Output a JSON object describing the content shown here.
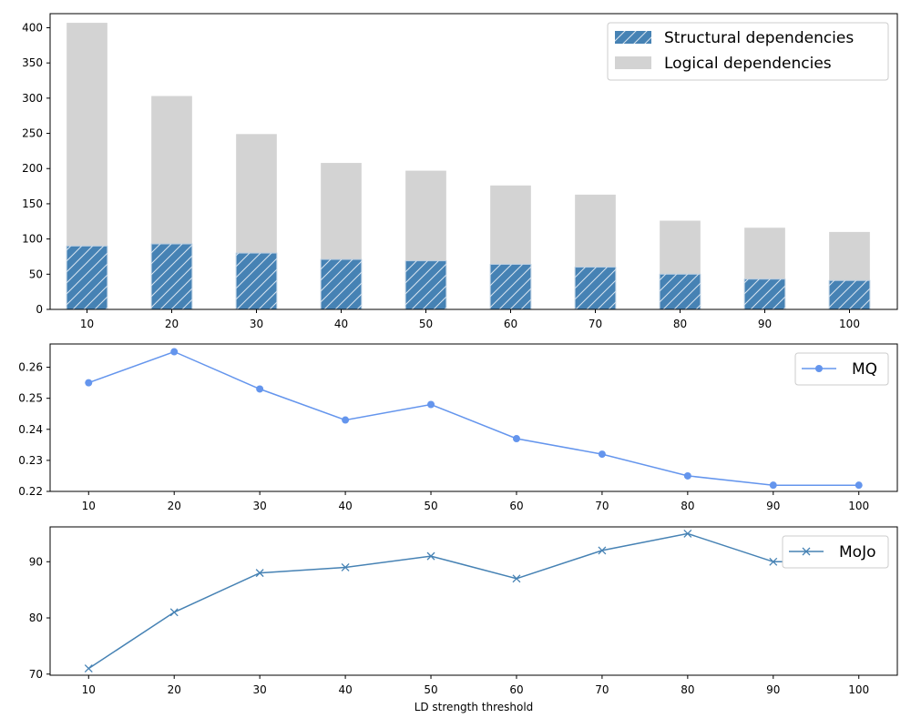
{
  "chart_data": [
    {
      "type": "bar",
      "stacked": false,
      "overlaid": true,
      "categories": [
        "10",
        "20",
        "30",
        "40",
        "50",
        "60",
        "70",
        "80",
        "90",
        "100"
      ],
      "series": [
        {
          "name": "Structural dependencies",
          "values": [
            90,
            93,
            80,
            71,
            69,
            64,
            60,
            50,
            43,
            41
          ],
          "color": "#4682b4",
          "hatch": "diagonal"
        },
        {
          "name": "Logical dependencies",
          "values": [
            407,
            303,
            249,
            208,
            197,
            176,
            163,
            126,
            116,
            110
          ],
          "color": "#d3d3d3"
        }
      ],
      "ylim": [
        0,
        420
      ],
      "yticks": [
        0,
        50,
        100,
        150,
        200,
        250,
        300,
        350,
        400
      ],
      "grid": false,
      "legend_position": "top-right"
    },
    {
      "type": "line",
      "x": [
        10,
        20,
        30,
        40,
        50,
        60,
        70,
        80,
        90,
        100
      ],
      "series": [
        {
          "name": "MQ",
          "values": [
            0.255,
            0.265,
            0.253,
            0.243,
            0.248,
            0.237,
            0.232,
            0.225,
            0.222,
            0.222
          ],
          "color": "#6495ed",
          "marker": "circle"
        }
      ],
      "xlim": [
        5.5,
        104.5
      ],
      "ylim": [
        0.22,
        0.2675
      ],
      "yticks": [
        0.22,
        0.23,
        0.24,
        0.25,
        0.26
      ],
      "xticks": [
        10,
        20,
        30,
        40,
        50,
        60,
        70,
        80,
        90,
        100
      ],
      "grid": false,
      "legend_position": "top-right"
    },
    {
      "type": "line",
      "x": [
        10,
        20,
        30,
        40,
        50,
        60,
        70,
        80,
        90,
        100
      ],
      "series": [
        {
          "name": "MoJo",
          "values": [
            71,
            81,
            88,
            89,
            91,
            87,
            92,
            95,
            90,
            90
          ],
          "color": "#4682b4",
          "marker": "x"
        }
      ],
      "xlim": [
        5.5,
        104.5
      ],
      "ylim": [
        69.8,
        96.2
      ],
      "yticks": [
        70,
        80,
        90
      ],
      "xticks": [
        10,
        20,
        30,
        40,
        50,
        60,
        70,
        80,
        90,
        100
      ],
      "xlabel": "LD strength threshold",
      "grid": false,
      "legend_position": "top-right"
    }
  ]
}
